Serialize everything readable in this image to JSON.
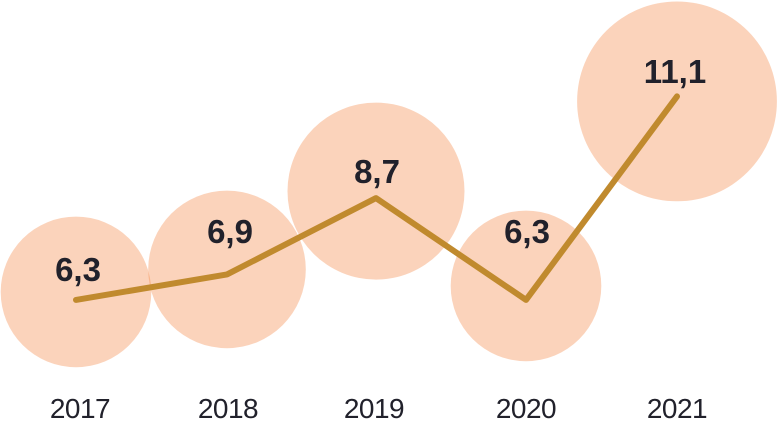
{
  "chart_data": {
    "type": "line",
    "subtype": "line-with-proportional-bubbles",
    "title": "",
    "xlabel": "",
    "ylabel": "",
    "categories": [
      "2017",
      "2018",
      "2019",
      "2020",
      "2021"
    ],
    "values": [
      6.3,
      6.9,
      8.7,
      6.3,
      11.1
    ],
    "value_labels": [
      "6,3",
      "6,9",
      "8,7",
      "6,3",
      "11,1"
    ],
    "decimal_separator": ",",
    "series": [
      {
        "name": "value",
        "values": [
          6.3,
          6.9,
          8.7,
          6.3,
          11.1
        ]
      }
    ],
    "axis": {
      "x_tick_labels": [
        "2017",
        "2018",
        "2019",
        "2020",
        "2021"
      ],
      "y_axis_visible": false,
      "x_axis_line_visible": false,
      "grid": false
    },
    "legend": {
      "visible": false
    },
    "bubbles": {
      "area_proportional_to_value": true
    },
    "colors": {
      "bubble_fill": "#F4823C",
      "bubble_opacity": 0.35,
      "line": "#C08A2E",
      "label_text": "#21212B",
      "axis_text": "#21212B",
      "background": "#FFFFFF"
    }
  }
}
